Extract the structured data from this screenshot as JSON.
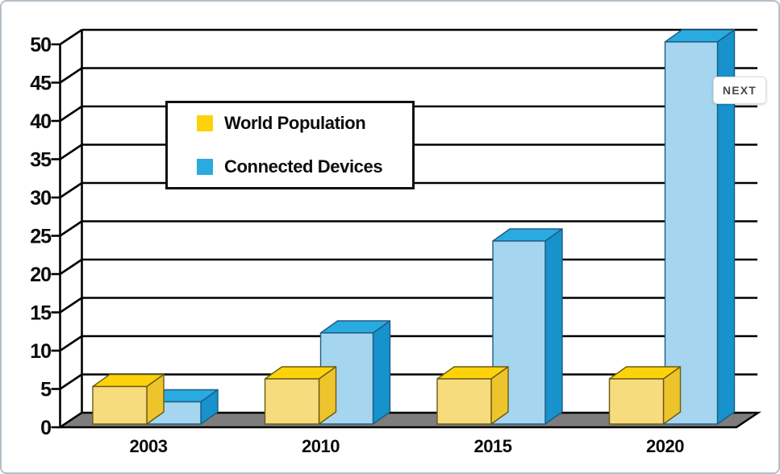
{
  "page": {
    "background": "#ffffff",
    "border_color": "#b3bfc8"
  },
  "next_button": {
    "label": "NEXT"
  },
  "chart_data": {
    "type": "bar",
    "style": "3d-columns",
    "title": "",
    "xlabel": "",
    "ylabel": "",
    "categories": [
      "2003",
      "2010",
      "2015",
      "2020"
    ],
    "series": [
      {
        "name": "World Population",
        "color": "#FCD30B",
        "values": [
          5,
          6,
          6,
          6
        ]
      },
      {
        "name": "Connected Devices",
        "color": "#29ABE2",
        "values": [
          3,
          12,
          24,
          50
        ]
      }
    ],
    "ylim": [
      0,
      50
    ],
    "yticks": [
      0,
      5,
      10,
      15,
      20,
      25,
      30,
      35,
      40,
      45,
      50
    ],
    "grid": true,
    "legend_position": "inside-upper-left",
    "axis_color": "#000000",
    "floor_color": "#7d7d7d",
    "gridline_color": "#000000"
  }
}
